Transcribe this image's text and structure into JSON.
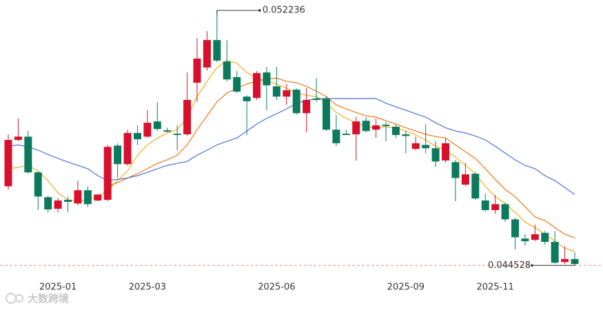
{
  "chart_data": {
    "type": "candlestick",
    "categories": [
      null,
      null,
      null,
      null,
      null,
      "2025-01",
      null,
      null,
      null,
      null,
      null,
      null,
      null,
      null,
      "2025-03",
      null,
      null,
      null,
      null,
      null,
      null,
      null,
      null,
      null,
      null,
      null,
      null,
      "2025-06",
      null,
      null,
      null,
      null,
      null,
      null,
      null,
      null,
      null,
      null,
      null,
      null,
      "2025-09",
      null,
      null,
      null,
      null,
      null,
      null,
      null,
      null,
      "2025-11",
      null,
      null,
      null,
      null,
      null,
      null,
      null,
      null
    ],
    "open": [
      0.04692,
      0.04832,
      0.04842,
      0.04734,
      0.04659,
      0.04624,
      0.04651,
      0.0464,
      0.0468,
      0.04649,
      0.04651,
      0.04815,
      0.04759,
      0.04853,
      0.04842,
      0.04888,
      0.04861,
      0.04851,
      0.04849,
      0.05005,
      0.05051,
      0.05134,
      0.05069,
      0.05022,
      0.04963,
      0.04959,
      0.05036,
      0.04994,
      0.04963,
      0.04984,
      0.04913,
      0.04957,
      0.04957,
      0.04863,
      0.04851,
      0.04849,
      0.0489,
      0.04863,
      0.04878,
      0.04872,
      0.04849,
      0.04805,
      0.04817,
      0.04807,
      0.0477,
      0.04765,
      0.04697,
      0.0473,
      0.04649,
      0.0462,
      0.04638,
      0.04592,
      0.04534,
      0.0453,
      0.04551,
      0.04524,
      0.04463,
      0.04472
    ],
    "close": [
      0.04832,
      0.04842,
      0.04734,
      0.04661,
      0.04622,
      0.04649,
      0.04645,
      0.0468,
      0.04638,
      0.04667,
      0.04811,
      0.04759,
      0.04853,
      0.04834,
      0.04884,
      0.04865,
      0.04857,
      0.04847,
      0.04953,
      0.05078,
      0.05134,
      0.05072,
      0.05015,
      0.04978,
      0.04949,
      0.05034,
      0.04997,
      0.04963,
      0.04982,
      0.04913,
      0.04953,
      0.04953,
      0.04863,
      0.04822,
      0.04847,
      0.04888,
      0.04859,
      0.04876,
      0.04874,
      0.04847,
      0.04844,
      0.04822,
      0.04807,
      0.04767,
      0.04822,
      0.04717,
      0.04728,
      0.04655,
      0.0462,
      0.04638,
      0.04592,
      0.04538,
      0.04526,
      0.04547,
      0.04524,
      0.04461,
      0.04472,
      0.04457
    ],
    "high": [
      0.04849,
      0.04897,
      0.04859,
      0.04738,
      0.04663,
      0.04657,
      0.04661,
      0.04709,
      0.04692,
      0.04667,
      0.04817,
      0.04822,
      0.04863,
      0.04876,
      0.04922,
      0.04947,
      0.04869,
      0.04876,
      0.05036,
      0.0514,
      0.05161,
      0.052236,
      0.05134,
      0.0504,
      0.04967,
      0.0504,
      0.05053,
      0.05053,
      0.05001,
      0.04988,
      0.04988,
      0.05019,
      0.04963,
      0.04907,
      0.04863,
      0.04901,
      0.04901,
      0.04897,
      0.04886,
      0.0488,
      0.04859,
      0.04842,
      0.0488,
      0.04828,
      0.04838,
      0.04772,
      0.04763,
      0.04734,
      0.0467,
      0.04665,
      0.04642,
      0.04597,
      0.04547,
      0.04576,
      0.04557,
      0.04557,
      0.04511,
      0.04492
    ],
    "low": [
      0.04682,
      0.04828,
      0.0473,
      0.0462,
      0.04613,
      0.04613,
      0.04613,
      0.04634,
      0.0463,
      0.04647,
      0.04647,
      0.04717,
      0.04755,
      0.04817,
      0.04838,
      0.04859,
      0.04855,
      0.04801,
      0.04844,
      0.04947,
      0.05042,
      0.05067,
      0.05009,
      0.04974,
      0.04847,
      0.04953,
      0.04922,
      0.04953,
      0.04938,
      0.04909,
      0.04855,
      0.04947,
      0.04859,
      0.04813,
      0.04847,
      0.0477,
      0.04855,
      0.04838,
      0.04828,
      0.04838,
      0.04792,
      0.04801,
      0.04792,
      0.04751,
      0.04763,
      0.04647,
      0.04692,
      0.04651,
      0.04615,
      0.04609,
      0.04584,
      0.04501,
      0.04513,
      0.04526,
      0.04515,
      0.04457,
      0.04457,
      0.044528
    ],
    "up_color": "#d8102b",
    "down_color": "#0b7a5d",
    "lines": [
      {
        "color": "#f0ad1a",
        "values": [
          0.04745,
          0.04749,
          0.04755,
          0.04738,
          0.04709,
          0.04672,
          0.04651,
          0.04647,
          0.04651,
          0.04661,
          0.0468,
          0.04709,
          0.04738,
          0.04786,
          0.04817,
          0.04838,
          0.04853,
          0.04863,
          0.04901,
          0.04963,
          0.05009,
          0.05051,
          0.05072,
          0.05064,
          0.05036,
          0.05019,
          0.05011,
          0.05001,
          0.04988,
          0.04974,
          0.04967,
          0.04963,
          0.04943,
          0.04915,
          0.04897,
          0.04884,
          0.04874,
          0.04867,
          0.04872,
          0.04867,
          0.04859,
          0.04847,
          0.04832,
          0.04813,
          0.04801,
          0.0478,
          0.04755,
          0.0473,
          0.04692,
          0.04661,
          0.0464,
          0.04613,
          0.04584,
          0.04567,
          0.04547,
          0.04526,
          0.04505,
          0.04495
        ]
      },
      {
        "color": "#ee7512",
        "values": [
          null,
          null,
          null,
          null,
          null,
          null,
          null,
          null,
          null,
          null,
          0.04692,
          0.04703,
          0.04717,
          0.0473,
          0.04745,
          0.04761,
          0.04772,
          0.04786,
          0.04817,
          0.04863,
          0.04905,
          0.04947,
          0.04974,
          0.04988,
          0.05001,
          0.05009,
          0.05015,
          0.05019,
          0.05009,
          0.05005,
          0.04994,
          0.0498,
          0.04963,
          0.04938,
          0.04926,
          0.04915,
          0.04905,
          0.04901,
          0.0489,
          0.0488,
          0.04869,
          0.04859,
          0.04849,
          0.04842,
          0.04838,
          0.04817,
          0.04796,
          0.04776,
          0.04745,
          0.04713,
          0.04682,
          0.04661,
          0.0463,
          0.04599,
          0.04588,
          0.04567,
          0.04547,
          0.04536
        ]
      },
      {
        "color": "#4a6fd6",
        "values": [
          0.04813,
          0.04817,
          0.04811,
          0.04801,
          0.04788,
          0.04776,
          0.04765,
          0.04755,
          0.04745,
          0.04724,
          0.04709,
          0.04713,
          0.04717,
          0.04724,
          0.04734,
          0.04745,
          0.04755,
          0.04761,
          0.04767,
          0.04786,
          0.04801,
          0.04817,
          0.04828,
          0.04838,
          0.04859,
          0.0488,
          0.04897,
          0.04911,
          0.04926,
          0.04943,
          0.04951,
          0.04957,
          0.04957,
          0.04957,
          0.04957,
          0.04957,
          0.04957,
          0.04957,
          0.04943,
          0.04932,
          0.04922,
          0.04911,
          0.04901,
          0.04884,
          0.04869,
          0.04859,
          0.04853,
          0.04844,
          0.04832,
          0.04813,
          0.04792,
          0.04772,
          0.04755,
          0.04745,
          0.04724,
          0.04709,
          0.04688,
          0.04667
        ]
      }
    ],
    "ylim": [
      0.04318,
      0.05255
    ],
    "high_marker": 0.052236,
    "low_marker": 0.044528,
    "watermark": "大数跨境"
  }
}
